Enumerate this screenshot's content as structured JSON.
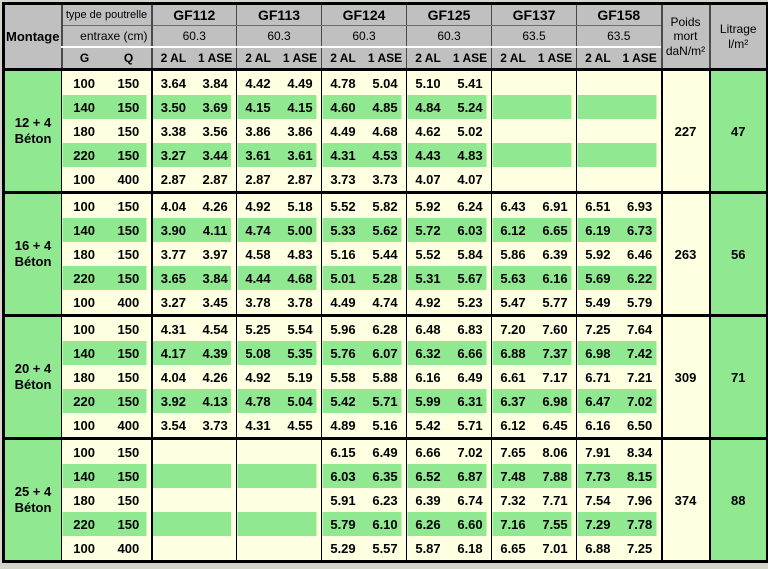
{
  "table": {
    "montage_label": "Montage",
    "type_row_label": "type de poutrelle",
    "entraxe_row_label": "entraxe (cm)",
    "g_label": "G",
    "q_label": "Q",
    "columns": [
      {
        "name": "GF112",
        "entraxe": "60.3",
        "sub_left": "2 AL",
        "sub_right": "1 ASE"
      },
      {
        "name": "GF113",
        "entraxe": "60.3",
        "sub_left": "2 AL",
        "sub_right": "1 ASE"
      },
      {
        "name": "GF124",
        "entraxe": "60.3",
        "sub_left": "2 AL",
        "sub_right": "1 ASE"
      },
      {
        "name": "GF125",
        "entraxe": "60.3",
        "sub_left": "2 AL",
        "sub_right": "1 ASE"
      },
      {
        "name": "GF137",
        "entraxe": "63.5",
        "sub_left": "2 AL",
        "sub_right": "1 ASE"
      },
      {
        "name": "GF158",
        "entraxe": "63.5",
        "sub_left": "2 AL",
        "sub_right": "1 ASE"
      }
    ],
    "poids_header_lines": [
      "Poids",
      "mort",
      "daN/m²"
    ],
    "litrage_header_lines": [
      "Litrage",
      "l/m²"
    ],
    "groups": [
      {
        "label_line1": "12 + 4",
        "label_line2": "Béton",
        "poids": "227",
        "litrage": "47",
        "rows": [
          {
            "g": "100",
            "q": "150",
            "values": [
              [
                "3.64",
                "3.84"
              ],
              [
                "4.42",
                "4.49"
              ],
              [
                "4.78",
                "5.04"
              ],
              [
                "5.10",
                "5.41"
              ],
              null,
              null
            ]
          },
          {
            "g": "140",
            "q": "150",
            "values": [
              [
                "3.50",
                "3.69"
              ],
              [
                "4.15",
                "4.15"
              ],
              [
                "4.60",
                "4.85"
              ],
              [
                "4.84",
                "5.24"
              ],
              null,
              null
            ]
          },
          {
            "g": "180",
            "q": "150",
            "values": [
              [
                "3.38",
                "3.56"
              ],
              [
                "3.86",
                "3.86"
              ],
              [
                "4.49",
                "4.68"
              ],
              [
                "4.62",
                "5.02"
              ],
              null,
              null
            ]
          },
          {
            "g": "220",
            "q": "150",
            "values": [
              [
                "3.27",
                "3.44"
              ],
              [
                "3.61",
                "3.61"
              ],
              [
                "4.31",
                "4.53"
              ],
              [
                "4.43",
                "4.83"
              ],
              null,
              null
            ]
          },
          {
            "g": "100",
            "q": "400",
            "values": [
              [
                "2.87",
                "2.87"
              ],
              [
                "2.87",
                "2.87"
              ],
              [
                "3.73",
                "3.73"
              ],
              [
                "4.07",
                "4.07"
              ],
              null,
              null
            ]
          }
        ]
      },
      {
        "label_line1": "16 + 4",
        "label_line2": "Béton",
        "poids": "263",
        "litrage": "56",
        "rows": [
          {
            "g": "100",
            "q": "150",
            "values": [
              [
                "4.04",
                "4.26"
              ],
              [
                "4.92",
                "5.18"
              ],
              [
                "5.52",
                "5.82"
              ],
              [
                "5.92",
                "6.24"
              ],
              [
                "6.43",
                "6.91"
              ],
              [
                "6.51",
                "6.93"
              ]
            ]
          },
          {
            "g": "140",
            "q": "150",
            "values": [
              [
                "3.90",
                "4.11"
              ],
              [
                "4.74",
                "5.00"
              ],
              [
                "5.33",
                "5.62"
              ],
              [
                "5.72",
                "6.03"
              ],
              [
                "6.12",
                "6.65"
              ],
              [
                "6.19",
                "6.73"
              ]
            ]
          },
          {
            "g": "180",
            "q": "150",
            "values": [
              [
                "3.77",
                "3.97"
              ],
              [
                "4.58",
                "4.83"
              ],
              [
                "5.16",
                "5.44"
              ],
              [
                "5.52",
                "5.84"
              ],
              [
                "5.86",
                "6.39"
              ],
              [
                "5.92",
                "6.46"
              ]
            ]
          },
          {
            "g": "220",
            "q": "150",
            "values": [
              [
                "3.65",
                "3.84"
              ],
              [
                "4.44",
                "4.68"
              ],
              [
                "5.01",
                "5.28"
              ],
              [
                "5.31",
                "5.67"
              ],
              [
                "5.63",
                "6.16"
              ],
              [
                "5.69",
                "6.22"
              ]
            ]
          },
          {
            "g": "100",
            "q": "400",
            "values": [
              [
                "3.27",
                "3.45"
              ],
              [
                "3.78",
                "3.78"
              ],
              [
                "4.49",
                "4.74"
              ],
              [
                "4.92",
                "5.23"
              ],
              [
                "5.47",
                "5.77"
              ],
              [
                "5.49",
                "5.79"
              ]
            ]
          }
        ]
      },
      {
        "label_line1": "20 + 4",
        "label_line2": "Béton",
        "poids": "309",
        "litrage": "71",
        "rows": [
          {
            "g": "100",
            "q": "150",
            "values": [
              [
                "4.31",
                "4.54"
              ],
              [
                "5.25",
                "5.54"
              ],
              [
                "5.96",
                "6.28"
              ],
              [
                "6.48",
                "6.83"
              ],
              [
                "7.20",
                "7.60"
              ],
              [
                "7.25",
                "7.64"
              ]
            ]
          },
          {
            "g": "140",
            "q": "150",
            "values": [
              [
                "4.17",
                "4.39"
              ],
              [
                "5.08",
                "5.35"
              ],
              [
                "5.76",
                "6.07"
              ],
              [
                "6.32",
                "6.66"
              ],
              [
                "6.88",
                "7.37"
              ],
              [
                "6.98",
                "7.42"
              ]
            ]
          },
          {
            "g": "180",
            "q": "150",
            "values": [
              [
                "4.04",
                "4.26"
              ],
              [
                "4.92",
                "5.19"
              ],
              [
                "5.58",
                "5.88"
              ],
              [
                "6.16",
                "6.49"
              ],
              [
                "6.61",
                "7.17"
              ],
              [
                "6.71",
                "7.21"
              ]
            ]
          },
          {
            "g": "220",
            "q": "150",
            "values": [
              [
                "3.92",
                "4.13"
              ],
              [
                "4.78",
                "5.04"
              ],
              [
                "5.42",
                "5.71"
              ],
              [
                "5.99",
                "6.31"
              ],
              [
                "6.37",
                "6.98"
              ],
              [
                "6.47",
                "7.02"
              ]
            ]
          },
          {
            "g": "100",
            "q": "400",
            "values": [
              [
                "3.54",
                "3.73"
              ],
              [
                "4.31",
                "4.55"
              ],
              [
                "4.89",
                "5.16"
              ],
              [
                "5.42",
                "5.71"
              ],
              [
                "6.12",
                "6.45"
              ],
              [
                "6.16",
                "6.50"
              ]
            ]
          }
        ]
      },
      {
        "label_line1": "25 + 4",
        "label_line2": "Béton",
        "poids": "374",
        "litrage": "88",
        "rows": [
          {
            "g": "100",
            "q": "150",
            "values": [
              null,
              null,
              [
                "6.15",
                "6.49"
              ],
              [
                "6.66",
                "7.02"
              ],
              [
                "7.65",
                "8.06"
              ],
              [
                "7.91",
                "8.34"
              ]
            ]
          },
          {
            "g": "140",
            "q": "150",
            "values": [
              null,
              null,
              [
                "6.03",
                "6.35"
              ],
              [
                "6.52",
                "6.87"
              ],
              [
                "7.48",
                "7.88"
              ],
              [
                "7.73",
                "8.15"
              ]
            ]
          },
          {
            "g": "180",
            "q": "150",
            "values": [
              null,
              null,
              [
                "5.91",
                "6.23"
              ],
              [
                "6.39",
                "6.74"
              ],
              [
                "7.32",
                "7.71"
              ],
              [
                "7.54",
                "7.96"
              ]
            ]
          },
          {
            "g": "220",
            "q": "150",
            "values": [
              null,
              null,
              [
                "5.79",
                "6.10"
              ],
              [
                "6.26",
                "6.60"
              ],
              [
                "7.16",
                "7.55"
              ],
              [
                "7.29",
                "7.78"
              ]
            ]
          },
          {
            "g": "100",
            "q": "400",
            "values": [
              null,
              null,
              [
                "5.29",
                "5.57"
              ],
              [
                "5.87",
                "6.18"
              ],
              [
                "6.65",
                "7.01"
              ],
              [
                "6.88",
                "7.25"
              ]
            ]
          }
        ]
      }
    ]
  },
  "colors": {
    "page_bg": "#d4d4ca",
    "header_bg": "#c0c0c0",
    "row_cream": "#ffffe1",
    "row_green": "#90e890",
    "border": "#000000"
  }
}
